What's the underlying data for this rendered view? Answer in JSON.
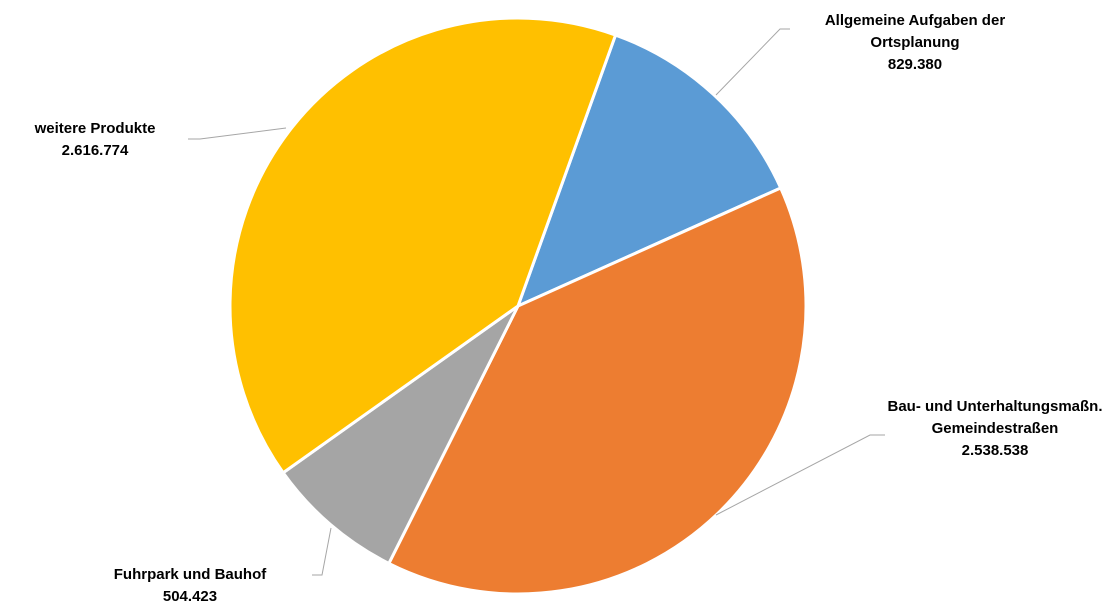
{
  "chart_data": {
    "type": "pie",
    "categories": [
      "Allgemeine Aufgaben der Ortsplanung",
      "Bau- und Unterhaltungsmaßn. Gemeindestraßen",
      "Fuhrpark und Bauhof",
      "weitere Produkte"
    ],
    "values": [
      829380,
      2538538,
      504423,
      2616774
    ],
    "value_labels": [
      "829.380",
      "2.538.538",
      "504.423",
      "2.616.774"
    ],
    "colors": [
      "#5b9bd5",
      "#ed7d31",
      "#a5a5a5",
      "#ffc000"
    ]
  }
}
